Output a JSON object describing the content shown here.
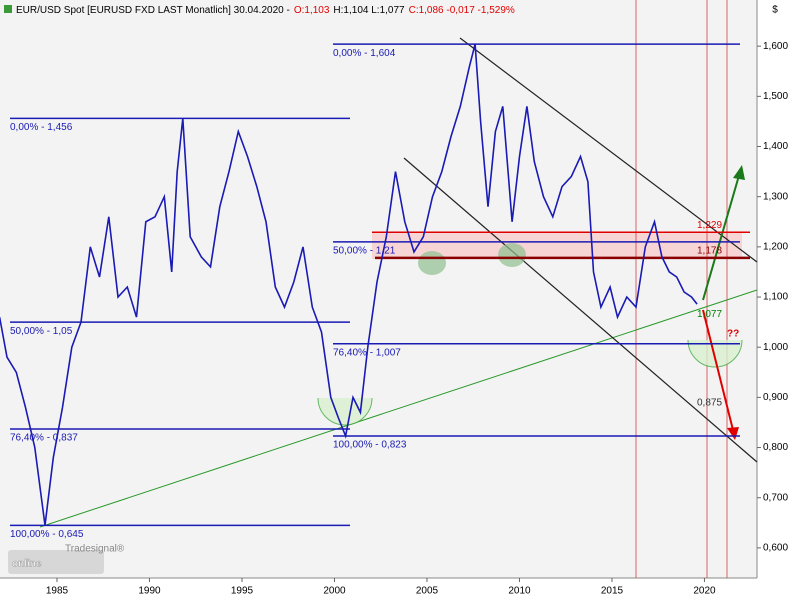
{
  "chart_data": {
    "type": "line",
    "title": "EUR/USD Spot [EURUSD FXD LAST Monatlich] 30.04.2020 -",
    "quote": [
      {
        "text": "O:1,103",
        "color": "#e00000"
      },
      {
        "text": "H:1,104 L:1,077",
        "color": "#000000"
      },
      {
        "text": "C:1,086 -0,017 -1,529%",
        "color": "#e00000"
      }
    ],
    "y_unit": "$",
    "logo": {
      "small": "Tradesignal®",
      "big": "online"
    },
    "xlim": [
      1981.92,
      2022.84
    ],
    "xticks": [
      1985,
      1990,
      1995,
      2000,
      2005,
      2010,
      2015,
      2020
    ],
    "ylim": [
      0.54,
      1.692
    ],
    "yticks": [
      {
        "value": 0.6,
        "label": "0,600"
      },
      {
        "value": 0.7,
        "label": "0,700"
      },
      {
        "value": 0.8,
        "label": "0,800"
      },
      {
        "value": 0.9,
        "label": "0,900"
      },
      {
        "value": 1.0,
        "label": "1,000"
      },
      {
        "value": 1.1,
        "label": "1,100"
      },
      {
        "value": 1.2,
        "label": "1,200"
      },
      {
        "value": 1.3,
        "label": "1,300"
      },
      {
        "value": 1.4,
        "label": "1,400"
      },
      {
        "value": 1.5,
        "label": "1,500"
      },
      {
        "value": 1.6,
        "label": "1,600"
      }
    ],
    "series": [
      {
        "name": "EUR/USD",
        "color": "#1a1ab4",
        "x": [
          1981.9,
          1982.3,
          1982.8,
          1983.3,
          1983.8,
          1984.35,
          1984.8,
          1985.3,
          1985.8,
          1986.3,
          1986.8,
          1987.3,
          1987.8,
          1988.3,
          1988.8,
          1989.3,
          1989.8,
          1990.3,
          1990.8,
          1991.2,
          1991.5,
          1991.8,
          1992.2,
          1992.8,
          1993.3,
          1993.8,
          1994.3,
          1994.8,
          1995.3,
          1995.8,
          1996.3,
          1996.8,
          1997.3,
          1997.8,
          1998.3,
          1998.8,
          1999.3,
          1999.8,
          2000.2,
          2000.6,
          2001.0,
          2001.4,
          2001.8,
          2002.3,
          2002.8,
          2003.3,
          2003.8,
          2004.3,
          2004.8,
          2005.3,
          2005.8,
          2006.3,
          2006.8,
          2007.3,
          2007.6,
          2007.9,
          2008.3,
          2008.7,
          2009.1,
          2009.6,
          2010.0,
          2010.4,
          2010.8,
          2011.3,
          2011.8,
          2012.3,
          2012.8,
          2013.3,
          2013.7,
          2014.0,
          2014.4,
          2014.9,
          2015.3,
          2015.8,
          2016.3,
          2016.8,
          2017.3,
          2017.7,
          2018.1,
          2018.5,
          2018.9,
          2019.3,
          2019.6
        ],
        "values": [
          1.06,
          0.98,
          0.95,
          0.88,
          0.8,
          0.645,
          0.78,
          0.88,
          1.0,
          1.05,
          1.2,
          1.14,
          1.26,
          1.1,
          1.12,
          1.06,
          1.25,
          1.26,
          1.3,
          1.15,
          1.35,
          1.456,
          1.22,
          1.18,
          1.16,
          1.28,
          1.35,
          1.43,
          1.38,
          1.32,
          1.25,
          1.12,
          1.08,
          1.13,
          1.2,
          1.08,
          1.03,
          0.9,
          0.86,
          0.823,
          0.9,
          0.87,
          1.0,
          1.13,
          1.22,
          1.35,
          1.25,
          1.19,
          1.22,
          1.3,
          1.35,
          1.42,
          1.48,
          1.56,
          1.604,
          1.45,
          1.28,
          1.43,
          1.48,
          1.25,
          1.38,
          1.48,
          1.37,
          1.3,
          1.26,
          1.32,
          1.34,
          1.38,
          1.33,
          1.15,
          1.08,
          1.12,
          1.06,
          1.1,
          1.08,
          1.2,
          1.25,
          1.18,
          1.15,
          1.14,
          1.11,
          1.1,
          1.086
        ]
      }
    ],
    "fib_left": [
      {
        "label": "0,00% - 1,456",
        "value": 1.456
      },
      {
        "label": "50,00% - 1,05",
        "value": 1.05
      },
      {
        "label": "76,40% - 0,837",
        "value": 0.837
      },
      {
        "label": "100,00% - 0,645",
        "value": 0.645
      }
    ],
    "fib_right": [
      {
        "label": "0,00% - 1,604",
        "value": 1.604
      },
      {
        "label": "50,00% - 1,21",
        "value": 1.21
      },
      {
        "label": "76,40% - 1,007",
        "value": 1.007
      },
      {
        "label": "100,00% - 0,823",
        "value": 0.823
      }
    ],
    "level_labels": [
      {
        "label": "1,229",
        "value": 1.229,
        "color": "#e00000"
      },
      {
        "label": "1,178",
        "value": 1.178,
        "color": "#8b0000"
      },
      {
        "label": "1,077",
        "value": 1.077,
        "color": "#008000"
      },
      {
        "label": "0,875",
        "value": 0.875,
        "color": "#333333"
      }
    ],
    "annotation": "??"
  }
}
